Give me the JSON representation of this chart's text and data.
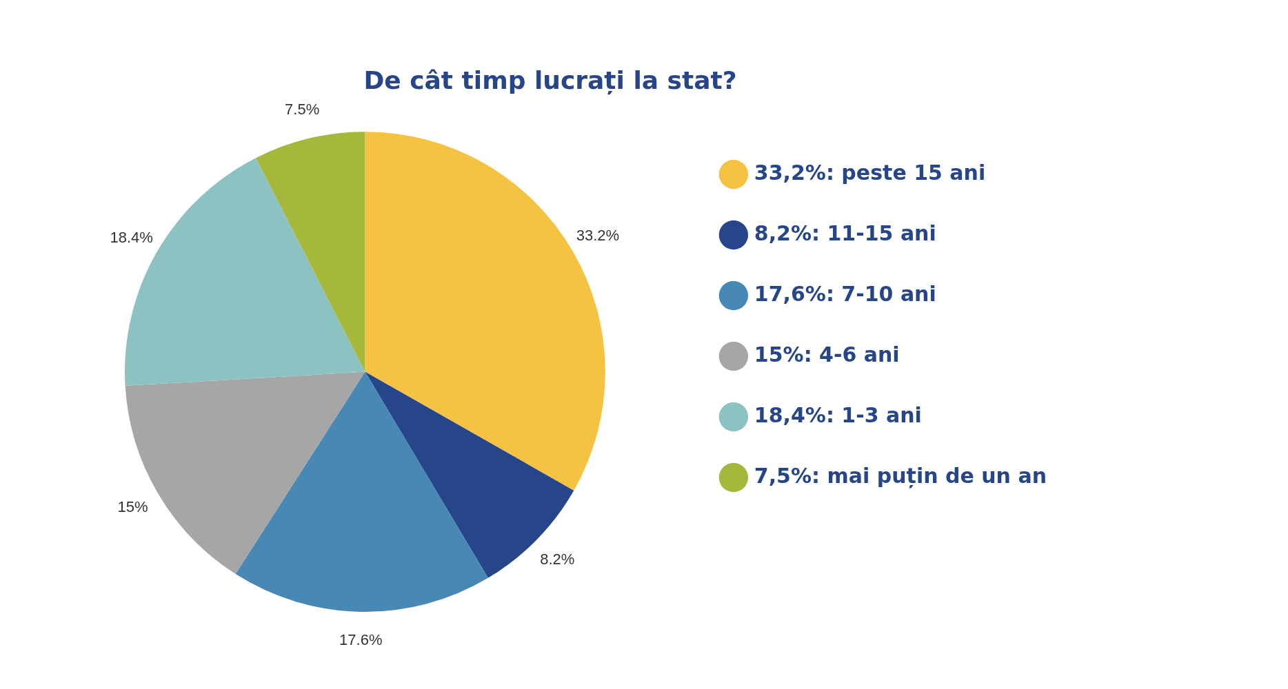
{
  "chart_data": {
    "type": "pie",
    "title": "De cât timp lucrați la stat?",
    "categories": [
      "33,2%: peste 15 ani",
      "8,2%: 11-15 ani",
      "17,6%: 7-10 ani",
      "15%: 4-6 ani",
      "18,4%: 1-3 ani",
      "7,5%: mai puțin de un an"
    ],
    "values": [
      33.2,
      8.2,
      17.6,
      15,
      18.4,
      7.5
    ],
    "value_labels": [
      "33.2%",
      "8.2%",
      "17.6%",
      "15%",
      "18.4%",
      "7.5%"
    ],
    "colors": [
      "#f5c242",
      "#27468a",
      "#4888b5",
      "#a6a6a6",
      "#8cc3c2",
      "#a5b83b"
    ],
    "legend": "right"
  }
}
